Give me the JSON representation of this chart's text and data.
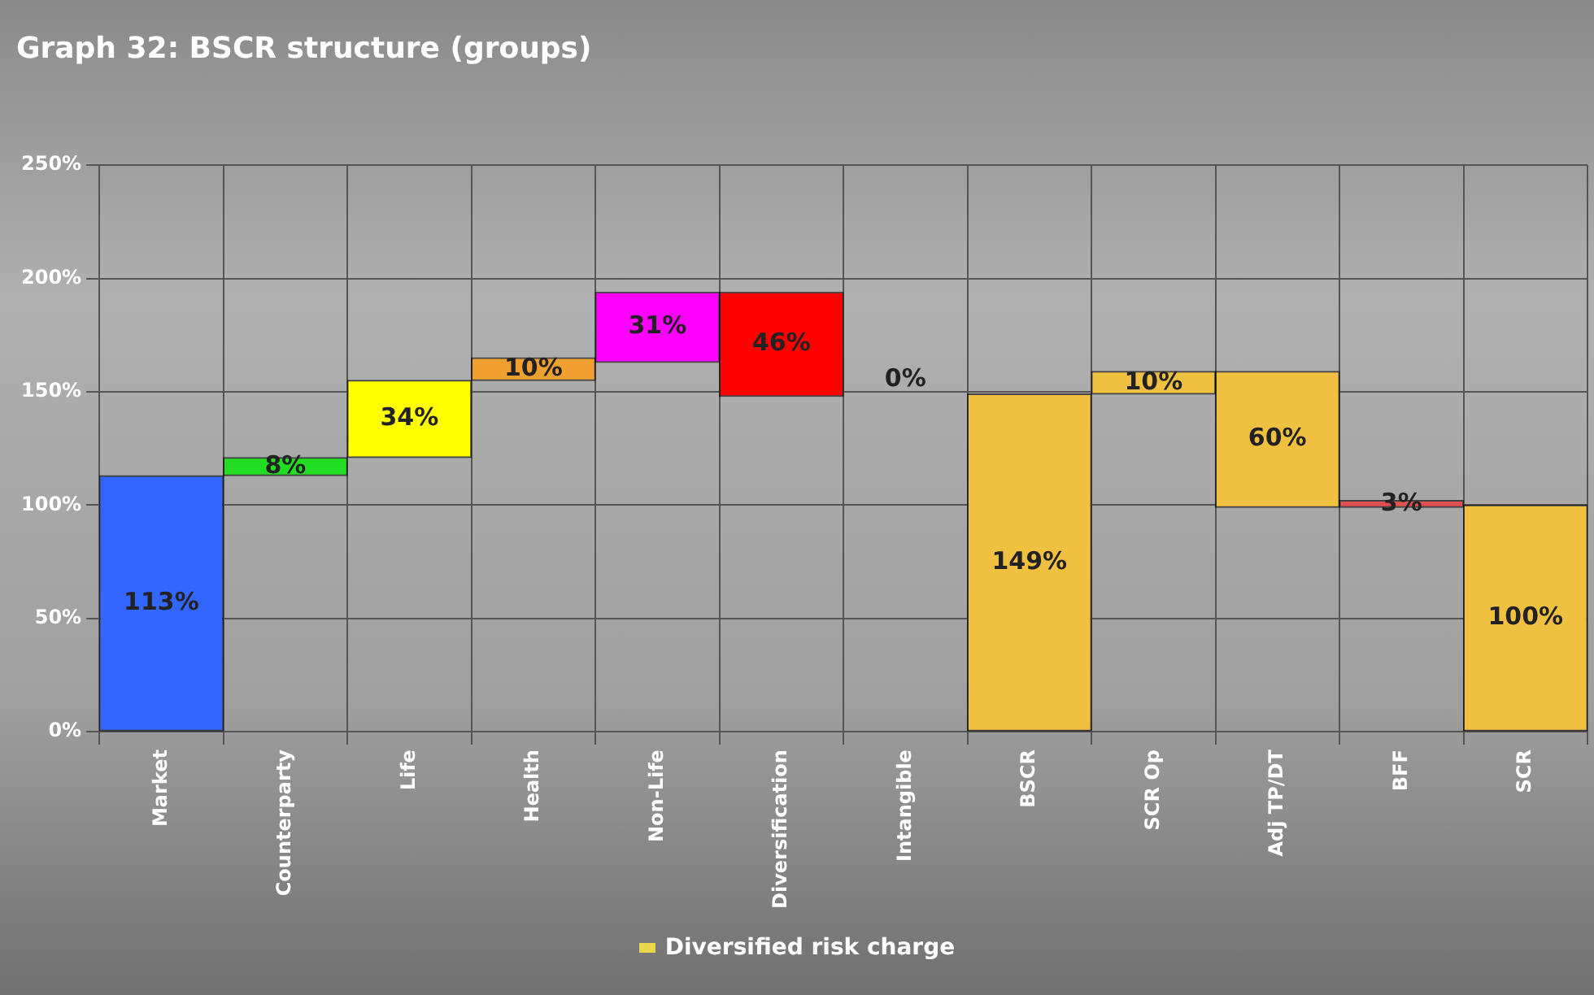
{
  "chart_data": {
    "type": "bar",
    "title": "Graph 32: BSCR structure (groups)",
    "categories": [
      "Market",
      "Counterparty",
      "Life",
      "Health",
      "Non-Life",
      "Diversification",
      "Intangible",
      "BSCR",
      "SCR Op",
      "Adj TP/DT",
      "BFF",
      "SCR"
    ],
    "series": [
      {
        "name": "Diversified risk charge",
        "color": "#e8d84a",
        "values": [
          113,
          8,
          34,
          10,
          31,
          -46,
          0,
          149,
          10,
          -60,
          3,
          100
        ],
        "base": [
          0,
          113,
          121,
          155,
          163,
          194,
          148,
          0,
          149,
          159,
          99,
          0
        ],
        "colors": [
          "#3366ff",
          "#22dd22",
          "#ffff00",
          "#f0a030",
          "#ff00ff",
          "#ff0000",
          "#6666aa",
          "#f0c040",
          "#f0c040",
          "#f0c040",
          "#e05050",
          "#f0c040"
        ],
        "value_labels": [
          "113%",
          "8%",
          "34%",
          "10%",
          "31%",
          "46%",
          "0%",
          "149%",
          "10%",
          "60%",
          "3%",
          "100%"
        ]
      }
    ],
    "ylim": [
      0,
      250
    ],
    "yticks": [
      {
        "value": 0,
        "label": "0%"
      },
      {
        "value": 50,
        "label": "50%"
      },
      {
        "value": 100,
        "label": "100%"
      },
      {
        "value": 150,
        "label": "150%"
      },
      {
        "value": 200,
        "label": "200%"
      },
      {
        "value": 250,
        "label": "250%"
      }
    ],
    "grid": true,
    "legend": "bottom"
  }
}
